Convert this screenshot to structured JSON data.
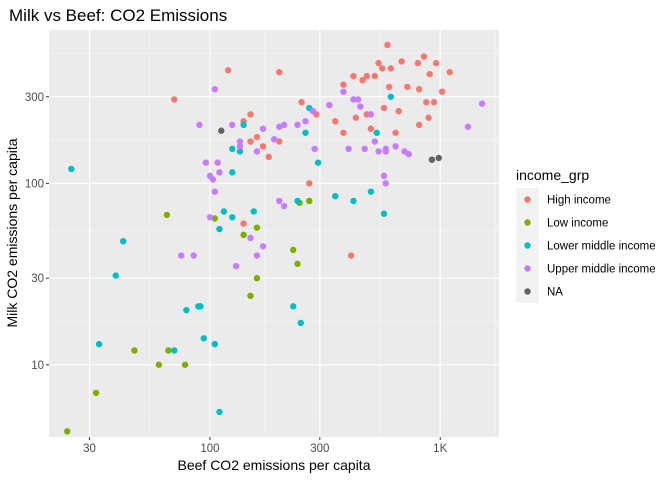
{
  "chart_data": {
    "type": "scatter",
    "title": "Milk vs Beef: CO2 Emissions",
    "xlabel": "Beef CO2 emissions per capita",
    "ylabel": "Milk CO2 emissions per capita",
    "xscale": "log10",
    "yscale": "log10",
    "xlim": [
      20,
      1800
    ],
    "ylim": [
      4,
      700
    ],
    "x_ticks": [
      {
        "value": 30,
        "label": "30"
      },
      {
        "value": 100,
        "label": "100"
      },
      {
        "value": 300,
        "label": "300"
      },
      {
        "value": 1000,
        "label": "1K"
      }
    ],
    "y_ticks": [
      {
        "value": 10,
        "label": "10"
      },
      {
        "value": 30,
        "label": "30"
      },
      {
        "value": 100,
        "label": "100"
      },
      {
        "value": 300,
        "label": "300"
      }
    ],
    "grid": true,
    "background": "#ebebeb",
    "legend": {
      "title": "income_grp",
      "position": "right",
      "entries": [
        {
          "name": "High income",
          "color": "#F8766D"
        },
        {
          "name": "Low income",
          "color": "#7CAE00"
        },
        {
          "name": "Lower middle income",
          "color": "#00BFC4"
        },
        {
          "name": "Upper middle income",
          "color": "#C77CFF"
        },
        {
          "name": "NA",
          "color": "#636363"
        }
      ]
    },
    "series": [
      {
        "name": "High income",
        "color": "#F8766D",
        "points": [
          [
            590,
            580
          ],
          [
            850,
            500
          ],
          [
            680,
            470
          ],
          [
            540,
            460
          ],
          [
            800,
            460
          ],
          [
            960,
            460
          ],
          [
            560,
            430
          ],
          [
            610,
            430
          ],
          [
            1100,
            410
          ],
          [
            900,
            400
          ],
          [
            420,
            390
          ],
          [
            480,
            390
          ],
          [
            520,
            390
          ],
          [
            460,
            370
          ],
          [
            380,
            350
          ],
          [
            600,
            340
          ],
          [
            720,
            340
          ],
          [
            810,
            330
          ],
          [
            1020,
            320
          ],
          [
            70,
            290
          ],
          [
            250,
            280
          ],
          [
            870,
            280
          ],
          [
            940,
            280
          ],
          [
            480,
            240
          ],
          [
            290,
            240
          ],
          [
            150,
            240
          ],
          [
            570,
            260
          ],
          [
            660,
            250
          ],
          [
            430,
            230
          ],
          [
            350,
            220
          ],
          [
            890,
            230
          ],
          [
            140,
            220
          ],
          [
            810,
            210
          ],
          [
            500,
            200
          ],
          [
            640,
            190
          ],
          [
            380,
            190
          ],
          [
            160,
            180
          ],
          [
            150,
            170
          ],
          [
            170,
            160
          ],
          [
            180,
            140
          ],
          [
            270,
            100
          ],
          [
            200,
            170
          ],
          [
            200,
            410
          ],
          [
            120,
            420
          ],
          [
            140,
            60
          ],
          [
            410,
            40
          ]
        ]
      },
      {
        "name": "Low income",
        "color": "#7CAE00",
        "points": [
          [
            65,
            67
          ],
          [
            105,
            64
          ],
          [
            140,
            52
          ],
          [
            160,
            57
          ],
          [
            270,
            80
          ],
          [
            245,
            78
          ],
          [
            230,
            43
          ],
          [
            240,
            36
          ],
          [
            160,
            30
          ],
          [
            150,
            24
          ],
          [
            66,
            12
          ],
          [
            47,
            12
          ],
          [
            60,
            10
          ],
          [
            78,
            10
          ],
          [
            32,
            7
          ],
          [
            24,
            4.3
          ]
        ]
      },
      {
        "name": "Lower middle income",
        "color": "#00BFC4",
        "points": [
          [
            25,
            120
          ],
          [
            42,
            48
          ],
          [
            39,
            31
          ],
          [
            33,
            13
          ],
          [
            79,
            20
          ],
          [
            89,
            21
          ],
          [
            91,
            21
          ],
          [
            94,
            14
          ],
          [
            105,
            13
          ],
          [
            70,
            12
          ],
          [
            110,
            56
          ],
          [
            115,
            70
          ],
          [
            125,
            65
          ],
          [
            155,
            70
          ],
          [
            230,
            21
          ],
          [
            248,
            17
          ],
          [
            240,
            80
          ],
          [
            350,
            85
          ],
          [
            420,
            80
          ],
          [
            500,
            90
          ],
          [
            570,
            68
          ],
          [
            610,
            300
          ],
          [
            530,
            190
          ],
          [
            125,
            155
          ],
          [
            140,
            210
          ],
          [
            135,
            150
          ],
          [
            125,
            115
          ],
          [
            295,
            130
          ],
          [
            260,
            190
          ],
          [
            270,
            260
          ],
          [
            110,
            5.5
          ]
        ]
      },
      {
        "name": "Upper middle income",
        "color": "#C77CFF",
        "points": [
          [
            105,
            330
          ],
          [
            90,
            210
          ],
          [
            96,
            130
          ],
          [
            100,
            110
          ],
          [
            103,
            105
          ],
          [
            108,
            130
          ],
          [
            110,
            115
          ],
          [
            125,
            210
          ],
          [
            135,
            170
          ],
          [
            135,
            160
          ],
          [
            160,
            150
          ],
          [
            170,
            200
          ],
          [
            190,
            175
          ],
          [
            200,
            205
          ],
          [
            210,
            210
          ],
          [
            240,
            210
          ],
          [
            260,
            220
          ],
          [
            280,
            250
          ],
          [
            285,
            155
          ],
          [
            330,
            270
          ],
          [
            380,
            320
          ],
          [
            420,
            290
          ],
          [
            450,
            265
          ],
          [
            500,
            240
          ],
          [
            520,
            170
          ],
          [
            540,
            150
          ],
          [
            580,
            150
          ],
          [
            580,
            155
          ],
          [
            640,
            160
          ],
          [
            700,
            150
          ],
          [
            730,
            145
          ],
          [
            570,
            110
          ],
          [
            580,
            100
          ],
          [
            1320,
            205
          ],
          [
            1520,
            275
          ],
          [
            440,
            290
          ],
          [
            470,
            155
          ],
          [
            400,
            155
          ],
          [
            100,
            65
          ],
          [
            85,
            40
          ],
          [
            75,
            40
          ],
          [
            105,
            90
          ],
          [
            130,
            35
          ],
          [
            150,
            50
          ],
          [
            160,
            40
          ],
          [
            170,
            45
          ],
          [
            200,
            80
          ],
          [
            210,
            75
          ]
        ]
      },
      {
        "name": "NA",
        "color": "#636363",
        "points": [
          [
            112,
            195
          ],
          [
            920,
            135
          ],
          [
            985,
            138
          ]
        ]
      }
    ]
  }
}
